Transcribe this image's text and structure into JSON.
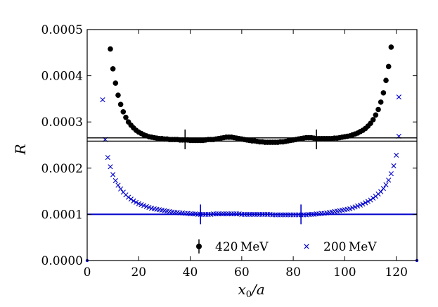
{
  "chart_data": {
    "type": "scatter",
    "title": "",
    "xlabel": "x₀/a",
    "ylabel": "R",
    "xlim": [
      0,
      128
    ],
    "ylim": [
      0,
      0.0005
    ],
    "xticks": [
      0,
      20,
      40,
      60,
      80,
      100,
      120
    ],
    "xtick_labels": [
      "0",
      "20",
      "40",
      "60",
      "80",
      "100",
      "120"
    ],
    "yticks": [
      0,
      0.0001,
      0.0002,
      0.0003,
      0.0004,
      0.0005
    ],
    "ytick_labels": [
      "0.0000",
      "0.0001",
      "0.0002",
      "0.0003",
      "0.0004",
      "0.0005"
    ],
    "legend_position": "bottom-right",
    "series": [
      {
        "name": "420 MeV",
        "marker": "circle",
        "color": "#000000",
        "x": [
          9,
          10,
          11,
          12,
          13,
          14,
          15,
          16,
          17,
          18,
          19,
          20,
          21,
          22,
          23,
          24,
          25,
          26,
          27,
          28,
          29,
          30,
          31,
          32,
          33,
          34,
          35,
          36,
          37,
          38,
          39,
          40,
          41,
          42,
          43,
          44,
          45,
          46,
          47,
          48,
          49,
          50,
          51,
          52,
          53,
          54,
          55,
          56,
          57,
          58,
          59,
          60,
          61,
          62,
          63,
          64,
          65,
          66,
          67,
          68,
          69,
          70,
          71,
          72,
          73,
          74,
          75,
          76,
          77,
          78,
          79,
          80,
          81,
          82,
          83,
          84,
          85,
          86,
          87,
          88,
          89,
          90,
          91,
          92,
          93,
          94,
          95,
          96,
          97,
          98,
          99,
          100,
          101,
          102,
          103,
          104,
          105,
          106,
          107,
          108,
          109,
          110,
          111,
          112,
          113,
          114,
          115,
          116,
          117,
          118
        ],
        "y": [
          0.000458,
          0.000415,
          0.000384,
          0.000358,
          0.000338,
          0.000322,
          0.00031,
          0.0003,
          0.000293,
          0.000287,
          0.000282,
          0.000278,
          0.000275,
          0.000272,
          0.00027,
          0.000268,
          0.000267,
          0.000266,
          0.000265,
          0.000264,
          0.000264,
          0.000263,
          0.000263,
          0.000262,
          0.000262,
          0.000262,
          0.000262,
          0.000261,
          0.000261,
          0.000261,
          0.000261,
          0.00026,
          0.00026,
          0.00026,
          0.00026,
          0.00026,
          0.00026,
          0.000261,
          0.000262,
          0.000262,
          0.000262,
          0.000263,
          0.000264,
          0.000265,
          0.000266,
          0.000267,
          0.000267,
          0.000267,
          0.000266,
          0.000265,
          0.000264,
          0.000263,
          0.000262,
          0.000261,
          0.00026,
          0.000259,
          0.000259,
          0.000258,
          0.000257,
          0.000257,
          0.000256,
          0.000256,
          0.000256,
          0.000256,
          0.000256,
          0.000256,
          0.000257,
          0.000257,
          0.000258,
          0.000259,
          0.00026,
          0.000261,
          0.000262,
          0.000263,
          0.000264,
          0.000265,
          0.000266,
          0.000266,
          0.000266,
          0.000265,
          0.000264,
          0.000264,
          0.000264,
          0.000264,
          0.000264,
          0.000264,
          0.000264,
          0.000265,
          0.000265,
          0.000266,
          0.000267,
          0.000268,
          0.000269,
          0.00027,
          0.000272,
          0.000274,
          0.000276,
          0.000279,
          0.000282,
          0.000286,
          0.000291,
          0.000297,
          0.000305,
          0.000315,
          0.000327,
          0.000343,
          0.000363,
          0.00039,
          0.00042,
          0.000462
        ]
      },
      {
        "name": "200 MeV",
        "marker": "x",
        "color": "#0000cc",
        "x": [
          6,
          7,
          8,
          9,
          10,
          11,
          12,
          13,
          14,
          15,
          16,
          17,
          18,
          19,
          20,
          21,
          22,
          23,
          24,
          25,
          26,
          27,
          28,
          29,
          30,
          31,
          32,
          33,
          34,
          35,
          36,
          37,
          38,
          39,
          40,
          41,
          42,
          43,
          44,
          45,
          46,
          47,
          48,
          49,
          50,
          51,
          52,
          53,
          54,
          55,
          56,
          57,
          58,
          59,
          60,
          61,
          62,
          63,
          64,
          65,
          66,
          67,
          68,
          69,
          70,
          71,
          72,
          73,
          74,
          75,
          76,
          77,
          78,
          79,
          80,
          81,
          82,
          83,
          84,
          85,
          86,
          87,
          88,
          89,
          90,
          91,
          92,
          93,
          94,
          95,
          96,
          97,
          98,
          99,
          100,
          101,
          102,
          103,
          104,
          105,
          106,
          107,
          108,
          109,
          110,
          111,
          112,
          113,
          114,
          115,
          116,
          117,
          118,
          119,
          120,
          121
        ],
        "y": [
          0.000348,
          0.000262,
          0.000223,
          0.000203,
          0.000186,
          0.000173,
          0.000163,
          0.000155,
          0.000148,
          0.000142,
          0.000137,
          0.000133,
          0.000129,
          0.000126,
          0.000123,
          0.000121,
          0.000119,
          0.000117,
          0.000115,
          0.000113,
          0.000112,
          0.000111,
          0.00011,
          0.000109,
          0.000108,
          0.000107,
          0.000106,
          0.000105,
          0.000104,
          0.000104,
          0.000103,
          0.000103,
          0.000102,
          0.000102,
          0.000101,
          0.000101,
          0.000101,
          0.0001,
          0.0001,
          0.0001,
          0.0001,
          0.0001,
          0.0001,
          0.000101,
          0.000101,
          0.000101,
          0.000101,
          0.000101,
          0.000101,
          0.000101,
          0.000101,
          0.000101,
          0.000101,
          0.000101,
          0.0001,
          0.0001,
          0.0001,
          0.0001,
          0.0001,
          0.0001,
          0.0001,
          0.0001,
          0.0001,
          0.0001,
          0.0001,
          0.0001,
          9.9e-05,
          9.9e-05,
          9.9e-05,
          9.9e-05,
          9.9e-05,
          9.9e-05,
          9.9e-05,
          9.9e-05,
          9.9e-05,
          9.9e-05,
          9.9e-05,
          9.9e-05,
          9.9e-05,
          9.9e-05,
          0.0001,
          0.0001,
          0.0001,
          0.000101,
          0.000101,
          0.000102,
          0.000102,
          0.000103,
          0.000104,
          0.000105,
          0.000106,
          0.000107,
          0.000108,
          0.000109,
          0.00011,
          0.000111,
          0.000112,
          0.000114,
          0.000116,
          0.000118,
          0.00012,
          0.000122,
          0.000125,
          0.000128,
          0.000131,
          0.000135,
          0.000139,
          0.000144,
          0.000149,
          0.000156,
          0.000164,
          0.000174,
          0.000188,
          0.000205,
          0.000228,
          0.000269
        ],
        "extra_points": [
          [
            121,
            0.000354
          ]
        ]
      }
    ],
    "fits": [
      {
        "series": "420 MeV",
        "color": "#000000",
        "value": 0.0002623,
        "band": [
          0.0002585,
          0.0002655
        ],
        "fit_range": [
          38,
          89
        ]
      },
      {
        "series": "200 MeV",
        "color": "#0000cc",
        "value": 0.0001,
        "band": [
          9.95e-05,
          0.0001005
        ],
        "fit_range": [
          44,
          83
        ]
      }
    ],
    "edge_points": [
      {
        "color": "#0000cc",
        "x": 0,
        "y": 0.0
      },
      {
        "color": "#0000cc",
        "x": 128,
        "y": 0.0
      }
    ]
  },
  "legend": {
    "label_420": "420 MeV",
    "label_200": "200 MeV"
  },
  "axes": {
    "xlabel_main": "x",
    "xlabel_sub": "0",
    "xlabel_rest": "/a",
    "ylabel": "R"
  }
}
